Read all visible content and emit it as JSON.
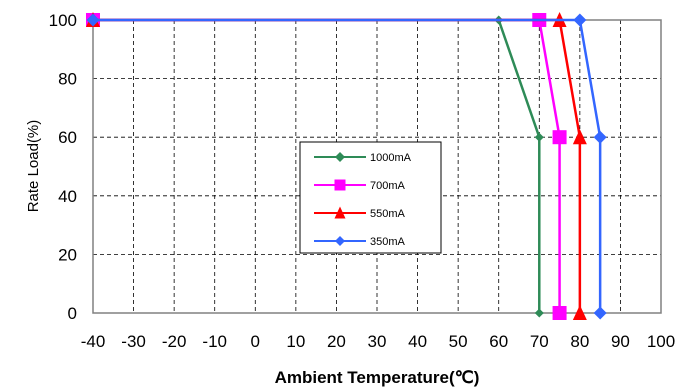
{
  "chart_data": {
    "type": "line",
    "title": "",
    "xlabel": "Ambient Temperature(℃)",
    "ylabel": "Rate Load(%)",
    "xlim": [
      -40,
      100
    ],
    "ylim": [
      0,
      100
    ],
    "x_ticks": [
      "-40",
      "-30",
      "-20",
      "-10",
      "0",
      "10",
      "20",
      "30",
      "40",
      "50",
      "60",
      "70",
      "80",
      "90",
      "100"
    ],
    "y_ticks": [
      "0",
      "20",
      "40",
      "60",
      "80",
      "100"
    ],
    "grid": "dashed",
    "legend_position": "center",
    "series": [
      {
        "name": "1000mA",
        "color": "#2e8b57",
        "marker": "diamond",
        "x": [
          -40,
          60,
          70,
          70
        ],
        "y": [
          100,
          100,
          60,
          0
        ]
      },
      {
        "name": "700mA",
        "color": "#ff00ff",
        "marker": "square",
        "x": [
          -40,
          70,
          75,
          75
        ],
        "y": [
          100,
          100,
          60,
          0
        ]
      },
      {
        "name": "550mA",
        "color": "#ff0000",
        "marker": "triangle",
        "x": [
          -40,
          75,
          80,
          80
        ],
        "y": [
          100,
          100,
          60,
          0
        ]
      },
      {
        "name": "350mA",
        "color": "#3366ff",
        "marker": "diamond",
        "x": [
          -40,
          80,
          85,
          85
        ],
        "y": [
          100,
          100,
          60,
          0
        ]
      }
    ]
  }
}
